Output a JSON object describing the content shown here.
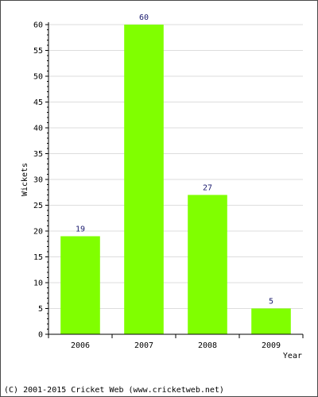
{
  "chart_data": {
    "type": "bar",
    "categories": [
      "2006",
      "2007",
      "2008",
      "2009"
    ],
    "values": [
      19,
      60,
      27,
      5
    ],
    "data_labels": [
      "19",
      "60",
      "27",
      "5"
    ],
    "xlabel": "Year",
    "ylabel": "Wickets",
    "ylim": [
      0,
      60
    ],
    "yticks": [
      "0",
      "5",
      "10",
      "15",
      "20",
      "25",
      "30",
      "35",
      "40",
      "45",
      "50",
      "55",
      "60"
    ],
    "grid": true,
    "legend": "none",
    "bar_color": "#80ff00",
    "grid_color": "#dddddd"
  },
  "footer": {
    "copyright": "(C) 2001-2015 Cricket Web (www.cricketweb.net)"
  }
}
